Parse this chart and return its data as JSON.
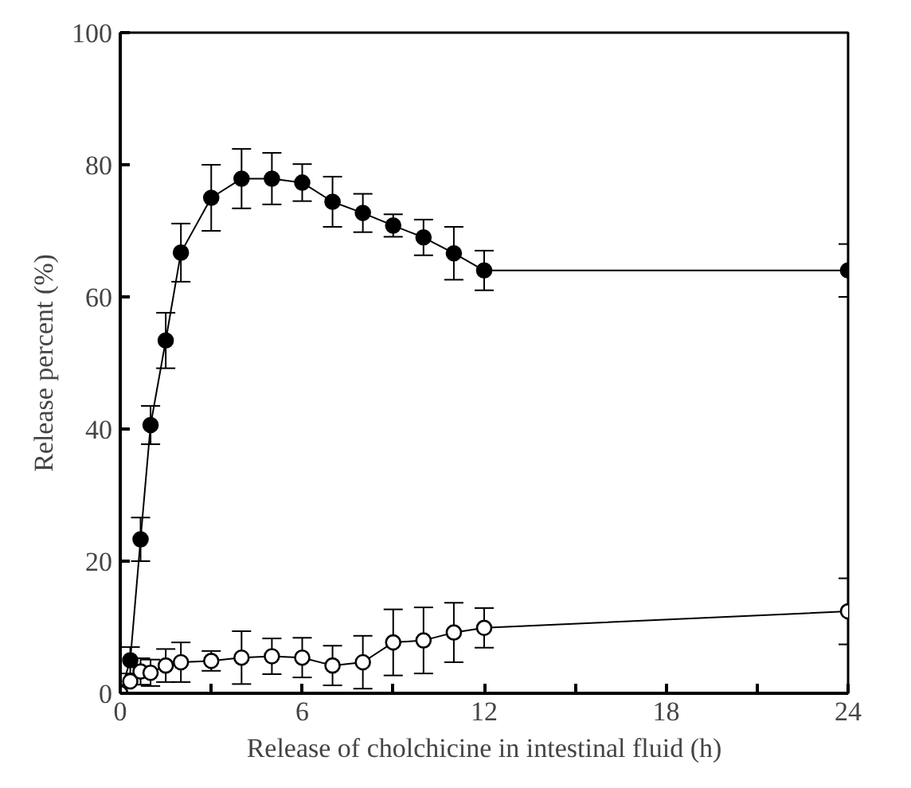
{
  "chart_data": {
    "type": "line",
    "xlabel": "Release of cholchicine in intestinal fluid (h)",
    "ylabel": "Release percent (%)",
    "xlim": [
      0,
      24
    ],
    "ylim": [
      0,
      100
    ],
    "xticks": [
      0,
      {
        "value": 3,
        "label": null
      },
      6,
      {
        "value": 9,
        "label": null
      },
      12,
      {
        "value": 15,
        "label": null
      },
      18,
      {
        "value": 21,
        "label": null
      },
      24
    ],
    "yticks": [
      0,
      20,
      40,
      60,
      80,
      100
    ],
    "grid": false,
    "line_style": "solid",
    "series": [
      {
        "color": "#000000",
        "marker": "circle",
        "x": [
          0,
          0.33,
          0.67,
          1,
          1.5,
          2,
          3,
          4,
          5,
          6,
          7,
          8,
          9,
          10,
          11,
          12,
          24
        ],
        "values": [
          0,
          5,
          23.3,
          40.6,
          53.4,
          66.7,
          75,
          77.9,
          77.9,
          77.3,
          74.4,
          72.7,
          70.8,
          69,
          66.6,
          64,
          64
        ],
        "errors": [
          null,
          2,
          3.3,
          2.9,
          4.2,
          4.4,
          5,
          4.5,
          3.9,
          2.8,
          3.8,
          2.9,
          1.7,
          2.7,
          4,
          3,
          4
        ]
      },
      {
        "color": "#000000",
        "marker": "open_circle",
        "x": [
          0,
          0.33,
          0.67,
          1,
          1.5,
          2,
          3,
          4,
          5,
          6,
          7,
          8,
          9,
          10,
          11,
          12,
          24
        ],
        "values": [
          0,
          1.8,
          3.3,
          3.1,
          4.2,
          4.7,
          4.9,
          5.4,
          5.6,
          5.4,
          4.2,
          4.7,
          7.7,
          8,
          9.2,
          9.9,
          12.4
        ],
        "errors": [
          null,
          null,
          2,
          2,
          2.5,
          3,
          1.5,
          4,
          2.7,
          3,
          3,
          4,
          5,
          5,
          4.5,
          3,
          5
        ]
      }
    ]
  }
}
